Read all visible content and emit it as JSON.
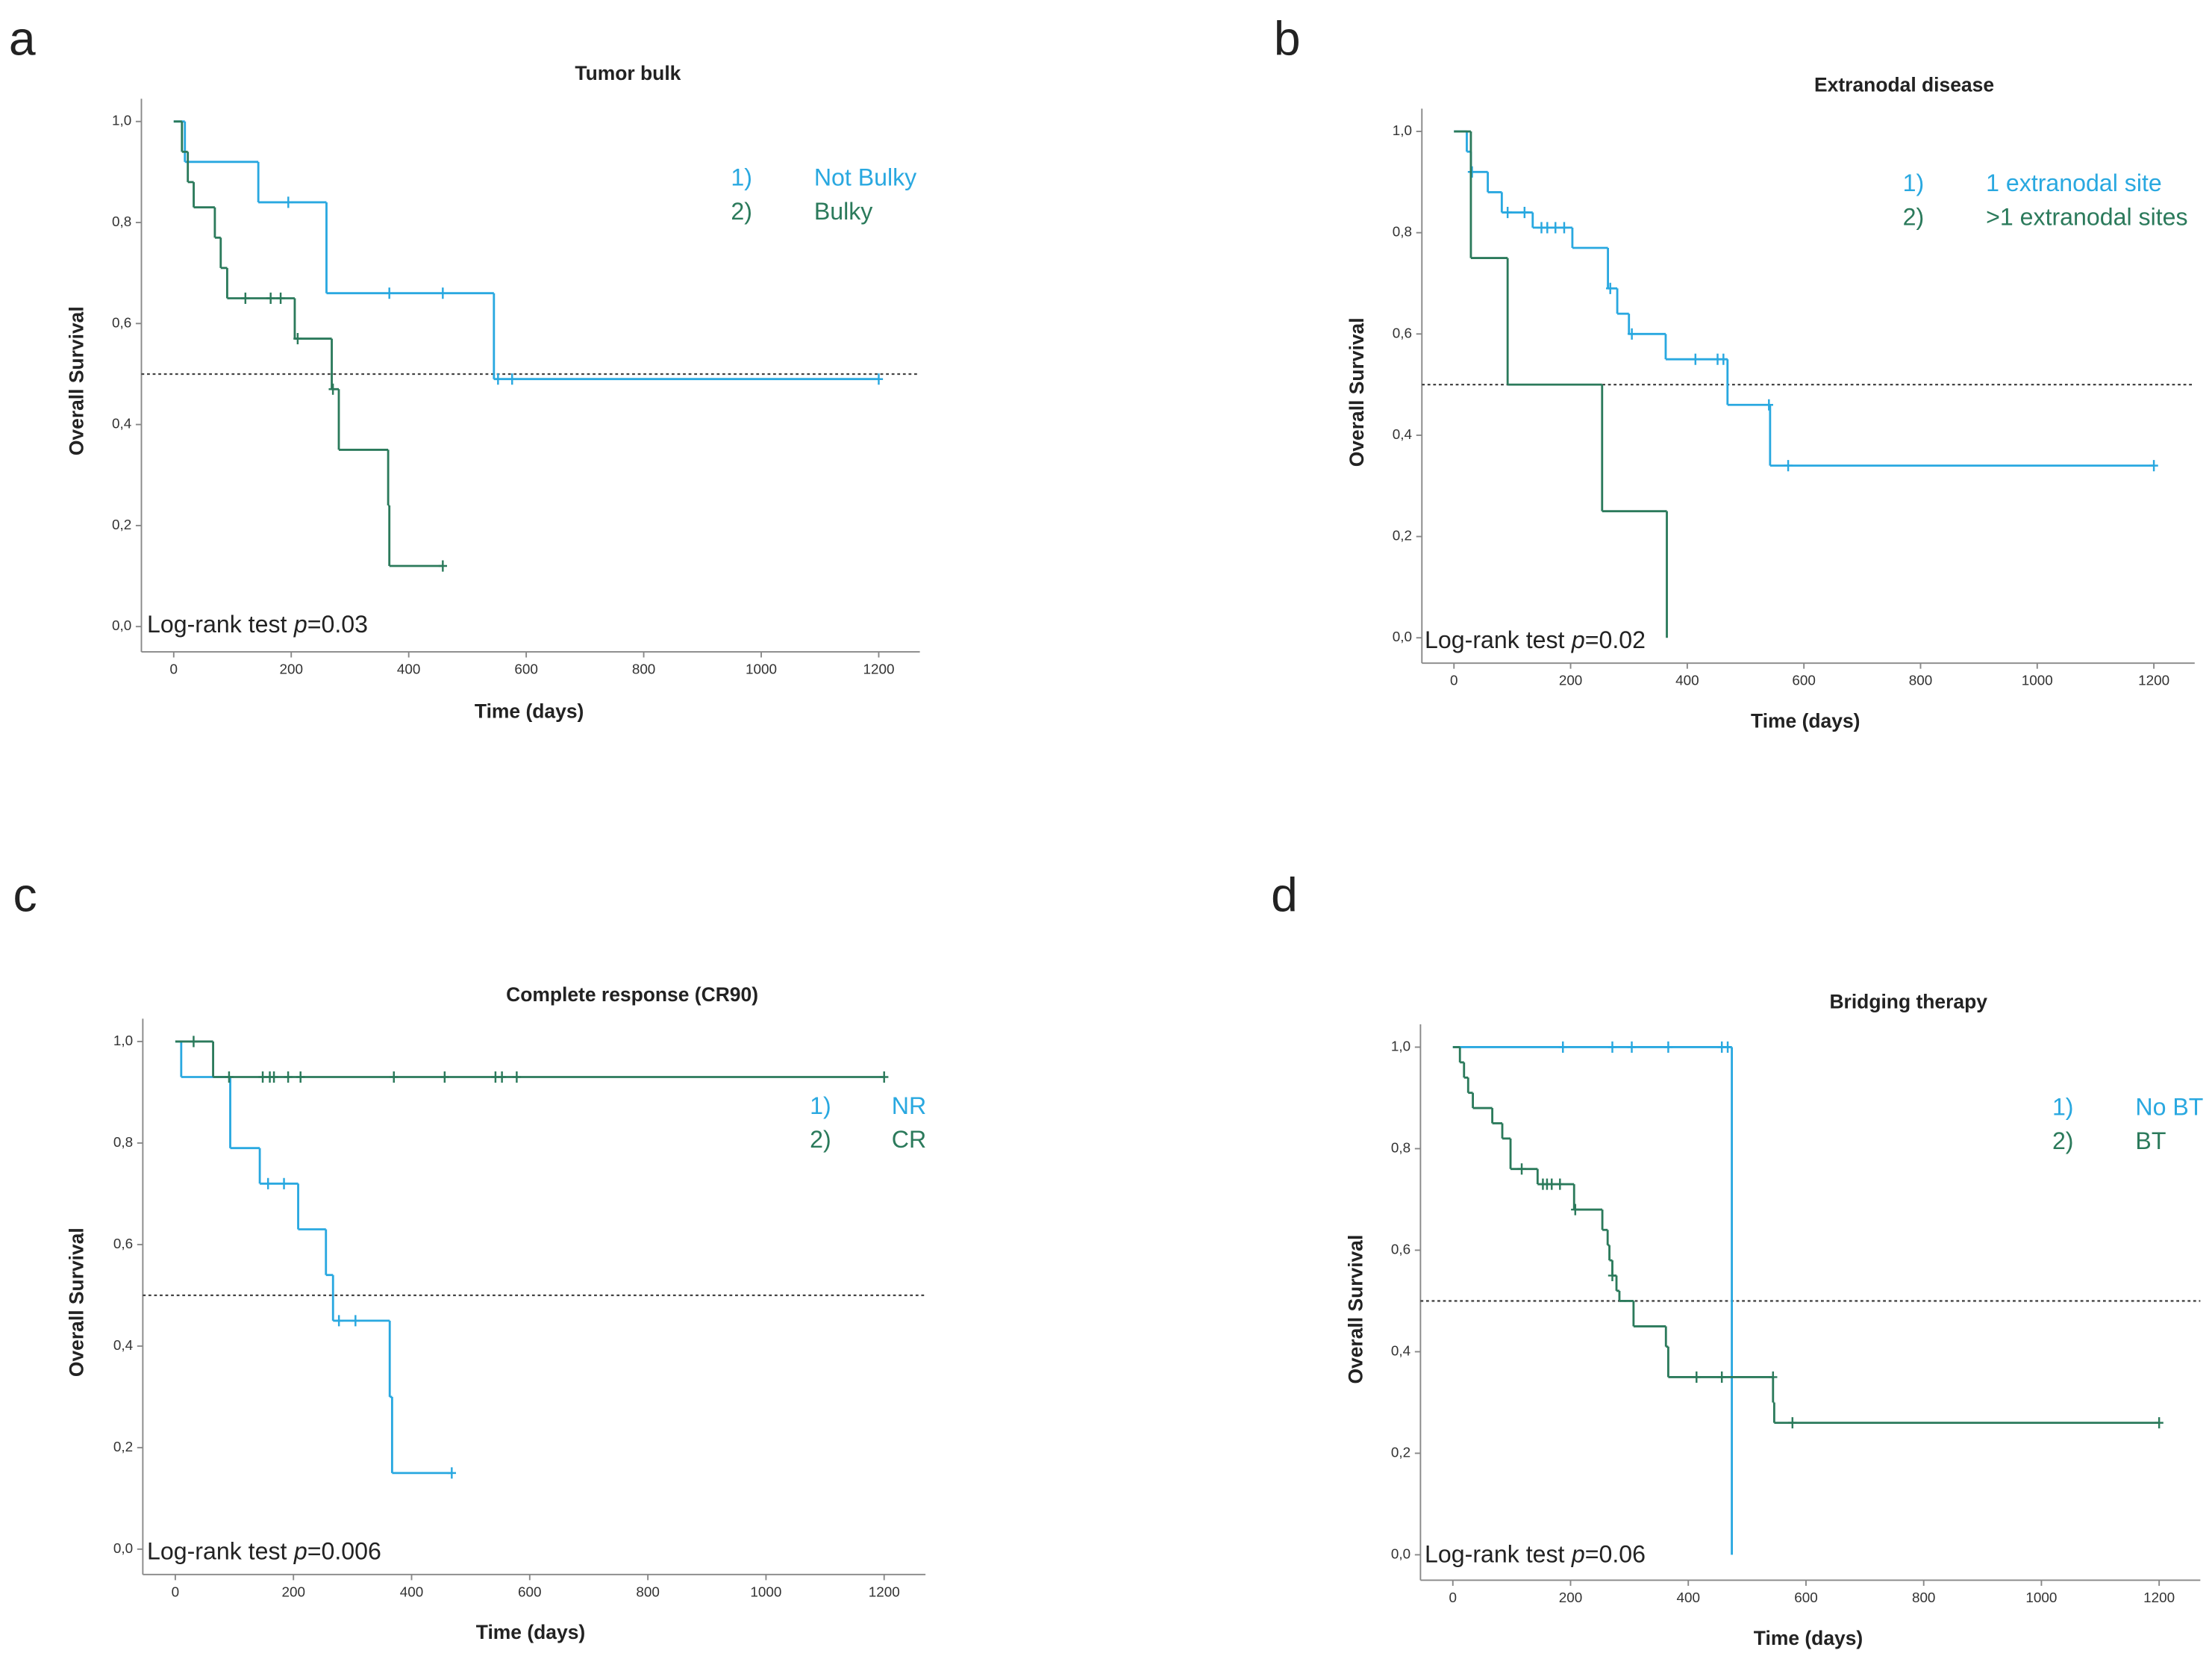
{
  "chart_data": [
    {
      "type": "line",
      "panel_label": "a",
      "title": "Tumor bulk",
      "xlabel": "Time (days)",
      "ylabel": "Overall Survival",
      "annotation_label": "Log-rank test",
      "annotation_stat": "p",
      "annotation_value": "=0.03",
      "xlim": [
        -55,
        1270
      ],
      "ylim": [
        -0.05,
        1.045
      ],
      "xticks": [
        0,
        200,
        400,
        600,
        800,
        1000,
        1200
      ],
      "yticks": [
        {
          "value": 0,
          "label": "0,0"
        },
        {
          "value": 0.2,
          "label": "0,2"
        },
        {
          "value": 0.4,
          "label": "0,4"
        },
        {
          "value": 0.6,
          "label": "0,6"
        },
        {
          "value": 0.8,
          "label": "0,8"
        },
        {
          "value": 1,
          "label": "1,0"
        }
      ],
      "reference_line": 0.5,
      "series": [
        {
          "legend_key": "1)",
          "name": "Not Bulky",
          "color": "#29a8e0",
          "x": [
            0,
            19,
            144,
            260,
            545,
            1200
          ],
          "values": [
            1,
            0.92,
            0.84,
            0.66,
            0.49,
            0.49
          ],
          "censor_x": [
            195,
            367,
            458,
            552,
            576,
            1200
          ],
          "censor_values": [
            0.84,
            0.66,
            0.66,
            0.49,
            0.49,
            0.49
          ]
        },
        {
          "legend_key": "2)",
          "name": "Bulky",
          "color": "#2b7a5b",
          "x": [
            0,
            14,
            24,
            34,
            70,
            80,
            91,
            206,
            269,
            281,
            365,
            367,
            458
          ],
          "values": [
            1,
            0.94,
            0.88,
            0.83,
            0.77,
            0.71,
            0.65,
            0.57,
            0.47,
            0.35,
            0.24,
            0.12,
            0.12
          ],
          "censor_x": [
            122,
            165,
            182,
            211,
            271,
            458
          ],
          "censor_values": [
            0.65,
            0.65,
            0.65,
            0.57,
            0.47,
            0.12
          ]
        }
      ]
    },
    {
      "type": "line",
      "panel_label": "b",
      "title": "Extranodal disease",
      "xlabel": "Time (days)",
      "ylabel": "Overall Survival",
      "annotation_label": "Log-rank test",
      "annotation_stat": "p",
      "annotation_value": "=0.02",
      "xlim": [
        -55,
        1270
      ],
      "ylim": [
        -0.05,
        1.045
      ],
      "xticks": [
        0,
        200,
        400,
        600,
        800,
        1000,
        1200
      ],
      "yticks": [
        {
          "value": 0,
          "label": "0,0"
        },
        {
          "value": 0.2,
          "label": "0,2"
        },
        {
          "value": 0.4,
          "label": "0,4"
        },
        {
          "value": 0.6,
          "label": "0,6"
        },
        {
          "value": 0.8,
          "label": "0,8"
        },
        {
          "value": 1,
          "label": "1,0"
        }
      ],
      "reference_line": 0.5,
      "series": [
        {
          "legend_key": "1)",
          "name": "1 extranodal site",
          "color": "#29a8e0",
          "x": [
            0,
            22,
            29,
            58,
            82,
            135,
            203,
            264,
            280,
            300,
            363,
            469,
            542,
            1200
          ],
          "values": [
            1,
            0.96,
            0.92,
            0.88,
            0.84,
            0.81,
            0.77,
            0.69,
            0.64,
            0.6,
            0.55,
            0.46,
            0.34,
            0.34
          ],
          "censor_x": [
            31,
            92,
            121,
            150,
            160,
            174,
            189,
            268,
            305,
            414,
            452,
            462,
            540,
            573,
            1200
          ],
          "censor_values": [
            0.92,
            0.84,
            0.84,
            0.81,
            0.81,
            0.81,
            0.81,
            0.69,
            0.6,
            0.55,
            0.55,
            0.55,
            0.46,
            0.34,
            0.34
          ]
        },
        {
          "legend_key": "2)",
          "name": ">1 extranodal sites",
          "color": "#2b7a5b",
          "x": [
            0,
            29,
            92,
            254,
            365
          ],
          "values": [
            1,
            0.75,
            0.5,
            0.25,
            0
          ]
        }
      ]
    },
    {
      "type": "line",
      "panel_label": "c",
      "title": "Complete response (CR90)",
      "xlabel": "Time (days)",
      "ylabel": "Overall Survival",
      "annotation_label": "Log-rank test",
      "annotation_stat": "p",
      "annotation_value": "=0.006",
      "xlim": [
        -55,
        1270
      ],
      "ylim": [
        -0.05,
        1.045
      ],
      "xticks": [
        0,
        200,
        400,
        600,
        800,
        1000,
        1200
      ],
      "yticks": [
        {
          "value": 0,
          "label": "0,0"
        },
        {
          "value": 0.2,
          "label": "0,2"
        },
        {
          "value": 0.4,
          "label": "0,4"
        },
        {
          "value": 0.6,
          "label": "0,6"
        },
        {
          "value": 0.8,
          "label": "0,8"
        },
        {
          "value": 1,
          "label": "1,0"
        }
      ],
      "reference_line": 0.5,
      "series": [
        {
          "legend_key": "1)",
          "name": "NR",
          "color": "#29a8e0",
          "x": [
            0,
            10,
            93,
            143,
            208,
            255,
            267,
            363,
            367,
            468
          ],
          "values": [
            1,
            0.93,
            0.79,
            0.72,
            0.63,
            0.54,
            0.45,
            0.3,
            0.15,
            0.15
          ],
          "censor_x": [
            157,
            184,
            277,
            305,
            468
          ],
          "censor_values": [
            0.72,
            0.72,
            0.45,
            0.45,
            0.15
          ]
        },
        {
          "legend_key": "2)",
          "name": "CR",
          "color": "#2b7a5b",
          "x": [
            0,
            64,
            1200
          ],
          "values": [
            1,
            0.93,
            0.93
          ],
          "censor_x": [
            31,
            91,
            148,
            160,
            167,
            191,
            212,
            370,
            456,
            542,
            553,
            578,
            1200
          ],
          "censor_values": [
            1,
            0.93,
            0.93,
            0.93,
            0.93,
            0.93,
            0.93,
            0.93,
            0.93,
            0.93,
            0.93,
            0.93,
            0.93
          ]
        }
      ]
    },
    {
      "type": "line",
      "panel_label": "d",
      "title": "Bridging therapy",
      "xlabel": "Time (days)",
      "ylabel": "Overall Survival",
      "annotation_label": "Log-rank test",
      "annotation_stat": "p",
      "annotation_value": "=0.06",
      "xlim": [
        -55,
        1270
      ],
      "ylim": [
        -0.05,
        1.045
      ],
      "xticks": [
        0,
        200,
        400,
        600,
        800,
        1000,
        1200
      ],
      "yticks": [
        {
          "value": 0,
          "label": "0,0"
        },
        {
          "value": 0.2,
          "label": "0,2"
        },
        {
          "value": 0.4,
          "label": "0,4"
        },
        {
          "value": 0.6,
          "label": "0,6"
        },
        {
          "value": 0.8,
          "label": "0,8"
        },
        {
          "value": 1,
          "label": "1,0"
        }
      ],
      "reference_line": 0.5,
      "series": [
        {
          "legend_key": "1)",
          "name": "No BT",
          "color": "#29a8e0",
          "x": [
            0,
            474
          ],
          "values": [
            1,
            0
          ],
          "censor_x": [
            187,
            271,
            304,
            366,
            457,
            467
          ],
          "censor_values": [
            1,
            1,
            1,
            1,
            1,
            1
          ]
        },
        {
          "legend_key": "2)",
          "name": "BT",
          "color": "#2b7a5b",
          "x": [
            0,
            12,
            19,
            26,
            34,
            67,
            84,
            98,
            144,
            206,
            254,
            263,
            266,
            271,
            278,
            283,
            307,
            362,
            366,
            544,
            546,
            1200
          ],
          "values": [
            1,
            0.97,
            0.94,
            0.91,
            0.88,
            0.85,
            0.82,
            0.76,
            0.73,
            0.68,
            0.64,
            0.61,
            0.58,
            0.55,
            0.52,
            0.5,
            0.45,
            0.41,
            0.35,
            0.3,
            0.26,
            0.26
          ],
          "censor_x": [
            117,
            153,
            160,
            168,
            182,
            208,
            271,
            414,
            457,
            544,
            577,
            1200
          ],
          "censor_values": [
            0.76,
            0.73,
            0.73,
            0.73,
            0.73,
            0.68,
            0.55,
            0.35,
            0.35,
            0.35,
            0.26,
            0.26
          ]
        }
      ]
    }
  ]
}
